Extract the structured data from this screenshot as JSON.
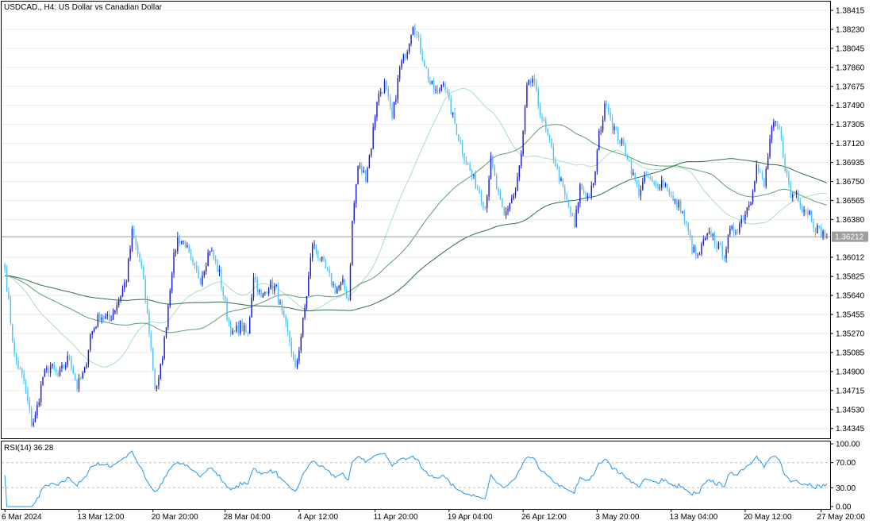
{
  "chart_data": {
    "type": "candlestick",
    "symbol": "USDCAD.",
    "timeframe": "H4",
    "description": "US Dollar vs Canadian Dollar",
    "title": "USDCAD., H4:  US Dollar vs Canadian Dollar",
    "current_price": 1.36212,
    "current_price_label": "1.36212",
    "ylim": [
      1.3425,
      1.385
    ],
    "y_ticks": [
      "1.38415",
      "1.38230",
      "1.38045",
      "1.37860",
      "1.37675",
      "1.37490",
      "1.37305",
      "1.37120",
      "1.36935",
      "1.36750",
      "1.36565",
      "1.36380",
      "1.36012",
      "1.35825",
      "1.35640",
      "1.35455",
      "1.35270",
      "1.35085",
      "1.34900",
      "1.34715",
      "1.34530",
      "1.34345"
    ],
    "x_ticks": [
      {
        "label": "6 Mar 2024",
        "index": 0
      },
      {
        "label": "13 Mar 12:00",
        "index": 39
      },
      {
        "label": "20 Mar 20:00",
        "index": 78
      },
      {
        "label": "28 Mar 04:00",
        "index": 116
      },
      {
        "label": "4 Apr 12:00",
        "index": 155
      },
      {
        "label": "11 Apr 20:00",
        "index": 195
      },
      {
        "label": "19 Apr 04:00",
        "index": 234
      },
      {
        "label": "26 Apr 12:00",
        "index": 273
      },
      {
        "label": "3 May 20:00",
        "index": 312
      },
      {
        "label": "13 May 04:00",
        "index": 351
      },
      {
        "label": "20 May 12:00",
        "index": 390
      },
      {
        "label": "27 May 20:00",
        "index": 430
      }
    ],
    "bar_count": 434,
    "anchors": [
      [
        0,
        1.359
      ],
      [
        5,
        1.3505
      ],
      [
        10,
        1.348
      ],
      [
        14,
        1.344
      ],
      [
        16,
        1.3445
      ],
      [
        20,
        1.3485
      ],
      [
        24,
        1.3495
      ],
      [
        28,
        1.3485
      ],
      [
        34,
        1.3505
      ],
      [
        38,
        1.3475
      ],
      [
        42,
        1.349
      ],
      [
        45,
        1.3525
      ],
      [
        50,
        1.3545
      ],
      [
        55,
        1.354
      ],
      [
        60,
        1.356
      ],
      [
        64,
        1.358
      ],
      [
        67,
        1.3625
      ],
      [
        72,
        1.359
      ],
      [
        76,
        1.353
      ],
      [
        79,
        1.3475
      ],
      [
        81,
        1.348
      ],
      [
        84,
        1.352
      ],
      [
        88,
        1.359
      ],
      [
        91,
        1.362
      ],
      [
        95,
        1.3615
      ],
      [
        98,
        1.3595
      ],
      [
        103,
        1.358
      ],
      [
        108,
        1.361
      ],
      [
        113,
        1.3585
      ],
      [
        117,
        1.3545
      ],
      [
        120,
        1.3525
      ],
      [
        124,
        1.3535
      ],
      [
        128,
        1.3525
      ],
      [
        131,
        1.3585
      ],
      [
        135,
        1.356
      ],
      [
        139,
        1.3575
      ],
      [
        143,
        1.357
      ],
      [
        146,
        1.3545
      ],
      [
        150,
        1.352
      ],
      [
        153,
        1.349
      ],
      [
        156,
        1.3525
      ],
      [
        159,
        1.3565
      ],
      [
        162,
        1.3615
      ],
      [
        166,
        1.36
      ],
      [
        170,
        1.3585
      ],
      [
        174,
        1.357
      ],
      [
        178,
        1.3575
      ],
      [
        181,
        1.356
      ],
      [
        183,
        1.3635
      ],
      [
        186,
        1.369
      ],
      [
        190,
        1.368
      ],
      [
        193,
        1.371
      ],
      [
        196,
        1.3755
      ],
      [
        200,
        1.377
      ],
      [
        204,
        1.3735
      ],
      [
        208,
        1.3785
      ],
      [
        212,
        1.3805
      ],
      [
        215,
        1.383
      ],
      [
        218,
        1.381
      ],
      [
        221,
        1.379
      ],
      [
        224,
        1.377
      ],
      [
        228,
        1.376
      ],
      [
        231,
        1.3775
      ],
      [
        234,
        1.375
      ],
      [
        238,
        1.3725
      ],
      [
        242,
        1.37
      ],
      [
        246,
        1.368
      ],
      [
        250,
        1.3665
      ],
      [
        253,
        1.365
      ],
      [
        256,
        1.3695
      ],
      [
        260,
        1.366
      ],
      [
        263,
        1.364
      ],
      [
        266,
        1.3655
      ],
      [
        269,
        1.3665
      ],
      [
        272,
        1.37
      ],
      [
        275,
        1.3765
      ],
      [
        278,
        1.3775
      ],
      [
        281,
        1.375
      ],
      [
        284,
        1.373
      ],
      [
        288,
        1.3705
      ],
      [
        292,
        1.368
      ],
      [
        295,
        1.366
      ],
      [
        298,
        1.3645
      ],
      [
        300,
        1.363
      ],
      [
        303,
        1.367
      ],
      [
        307,
        1.366
      ],
      [
        310,
        1.367
      ],
      [
        313,
        1.372
      ],
      [
        317,
        1.3755
      ],
      [
        320,
        1.373
      ],
      [
        324,
        1.3715
      ],
      [
        328,
        1.37
      ],
      [
        331,
        1.368
      ],
      [
        334,
        1.3665
      ],
      [
        338,
        1.368
      ],
      [
        342,
        1.367
      ],
      [
        346,
        1.3675
      ],
      [
        349,
        1.367
      ],
      [
        352,
        1.3655
      ],
      [
        356,
        1.365
      ],
      [
        360,
        1.3625
      ],
      [
        362,
        1.361
      ],
      [
        365,
        1.36
      ],
      [
        368,
        1.3615
      ],
      [
        372,
        1.3625
      ],
      [
        376,
        1.361
      ],
      [
        379,
        1.3605
      ],
      [
        382,
        1.3625
      ],
      [
        386,
        1.363
      ],
      [
        390,
        1.3645
      ],
      [
        393,
        1.366
      ],
      [
        396,
        1.369
      ],
      [
        400,
        1.367
      ],
      [
        403,
        1.3715
      ],
      [
        405,
        1.373
      ],
      [
        408,
        1.3725
      ],
      [
        411,
        1.369
      ],
      [
        414,
        1.366
      ],
      [
        417,
        1.3665
      ],
      [
        420,
        1.365
      ],
      [
        424,
        1.3645
      ],
      [
        427,
        1.363
      ],
      [
        430,
        1.3625
      ],
      [
        433,
        1.3621
      ]
    ],
    "moving_averages": [
      {
        "period": 50,
        "color": "#a8e0c0"
      },
      {
        "period": 100,
        "color": "#5d9e6f"
      },
      {
        "period": 200,
        "color": "#2f6e48"
      }
    ],
    "colors": {
      "bull": "#1c1ccf",
      "bear": "#4fc3f7",
      "grid": "#ebebeb",
      "axis": "#000000",
      "price_line": "#9e9e9e",
      "badge": "#9e9e9e",
      "rsi_line": "#2196f3",
      "rsi_level": "#c0c0c0"
    }
  },
  "rsi": {
    "period": 14,
    "label": "RSI(14) 36.28",
    "levels": [
      70,
      30
    ],
    "ylim": [
      0,
      100
    ],
    "ticks": [
      "100.00",
      "70.00",
      "30.00",
      "0.00"
    ]
  }
}
